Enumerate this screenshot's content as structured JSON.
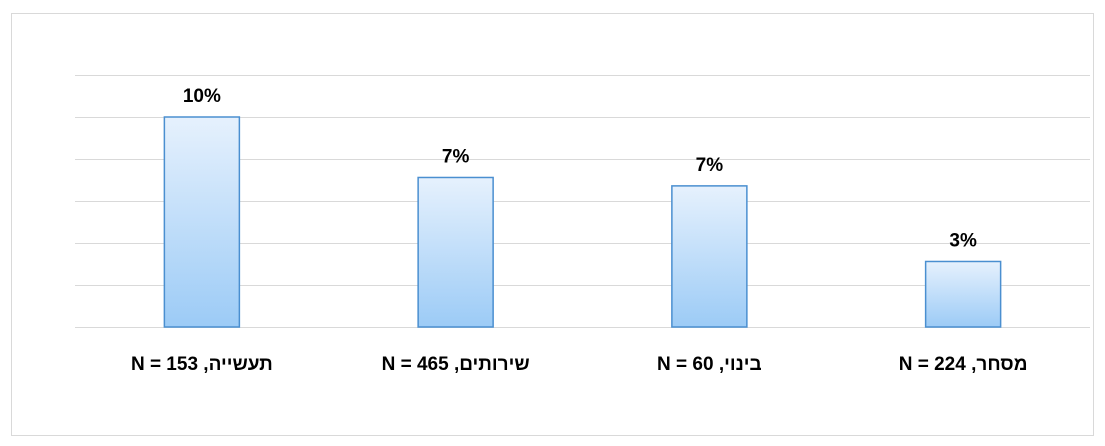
{
  "chart_data": {
    "type": "bar",
    "categories": [
      "תעשייה, N = 153",
      "שירותים, N = 465",
      "בינוי, N = 60",
      "מסחר, N = 224"
    ],
    "values": [
      10,
      7,
      7,
      3
    ],
    "data_labels": [
      "10%",
      "7%",
      "7%",
      "3%"
    ],
    "title": "",
    "xlabel": "",
    "ylabel": "",
    "ylim": [
      0,
      12
    ],
    "grid": true,
    "legend": "none",
    "colors": {
      "bar_fill_top": "#e6f1fd",
      "bar_fill_bottom": "#9ccbf6",
      "bar_stroke": "#4a8fd0",
      "gridline": "#d9d9d9",
      "frame": "#d9d9d9"
    }
  }
}
